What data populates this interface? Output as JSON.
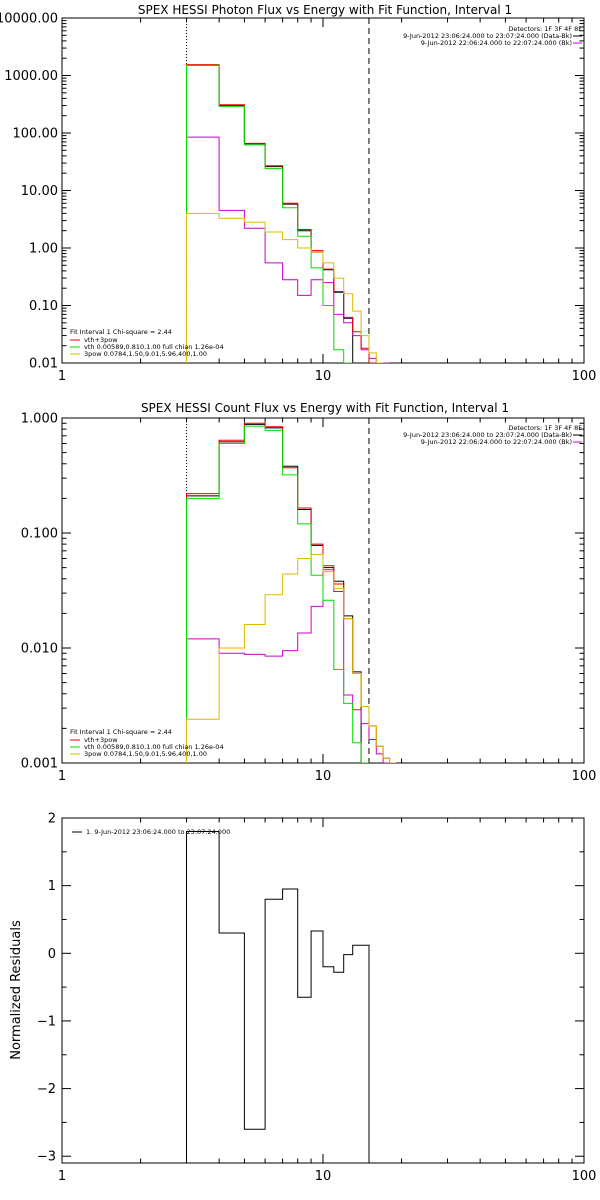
{
  "chart_data": [
    {
      "type": "line",
      "title": "SPEX HESSI Photon Flux vs Energy with Fit Function, Interval 1",
      "xlabel": "",
      "ylabel": "",
      "xscale": "log",
      "yscale": "log",
      "xlim": [
        1,
        100
      ],
      "ylim": [
        0.01,
        10000
      ],
      "xtick_labels": [
        "1",
        "10",
        "100"
      ],
      "ytick_labels": [
        "0.01",
        "0.10",
        "1.00",
        "10.00",
        "100.00",
        "1000.00",
        "10000.00"
      ],
      "vlines": [
        {
          "x": 3,
          "style": "dotted"
        },
        {
          "x": 15,
          "style": "dashed"
        }
      ],
      "info_lines": [
        "Detectors: 1F 3F 4F 8F",
        "9-Jun-2012 23:06:24.000 to 23:07:24.000 (Data-Bk)",
        "9-Jun-2012 22:06:24.000 to 22:07:24.000 (Bk)"
      ],
      "fit_legend": [
        "Fit Interval 1    Chi-square = 2.44",
        "vth+3pow",
        "vth 0.00589,0.810,1.00   full chian 1.26e-04",
        "3pow 0.0784,1.50,9.01,5.96,400,1.00"
      ],
      "edges": [
        3,
        4,
        5,
        6,
        7,
        8,
        9,
        10,
        11,
        12,
        13,
        14,
        15,
        16,
        17,
        18
      ],
      "series": [
        {
          "name": "Data-Bk",
          "color": "#000000",
          "values": [
            1500,
            300,
            65,
            26,
            5.8,
            2.0,
            0.85,
            0.42,
            0.17,
            0.06,
            null,
            null,
            null,
            null,
            null
          ]
        },
        {
          "name": "Bk",
          "color": "#cc00cc",
          "values": [
            85,
            4.5,
            2.2,
            0.55,
            0.28,
            0.15,
            0.28,
            0.25,
            0.07,
            0.05,
            0.03,
            0.017,
            0.012,
            0.01,
            0.01
          ]
        },
        {
          "name": "vth+3pow",
          "color": "#ee0000",
          "values": [
            1550,
            310,
            66,
            27,
            6.0,
            2.1,
            0.9,
            0.43,
            0.175,
            0.062,
            0.035,
            0.018,
            0.01,
            null,
            null
          ]
        },
        {
          "name": "vth",
          "color": "#00dd00",
          "values": [
            1500,
            290,
            62,
            24,
            5.0,
            1.6,
            0.45,
            0.1,
            0.017,
            0.01,
            null,
            null,
            null,
            null,
            null
          ]
        },
        {
          "name": "3pow",
          "color": "#ddbb00",
          "values": [
            4,
            3.3,
            2.8,
            1.9,
            1.4,
            1.0,
            0.85,
            0.55,
            0.3,
            0.16,
            0.08,
            0.03,
            0.015,
            0.01,
            null
          ]
        }
      ]
    },
    {
      "type": "line",
      "title": "SPEX HESSI Count Flux vs Energy with Fit Function, Interval 1",
      "xlabel": "",
      "ylabel": "",
      "xscale": "log",
      "yscale": "log",
      "xlim": [
        1,
        100
      ],
      "ylim": [
        0.001,
        1
      ],
      "xtick_labels": [
        "1",
        "10",
        "100"
      ],
      "ytick_labels": [
        "0.001",
        "0.010",
        "0.100",
        "1.000"
      ],
      "vlines": [
        {
          "x": 3,
          "style": "dotted"
        },
        {
          "x": 15,
          "style": "dashed"
        }
      ],
      "info_lines": [
        "Detectors: 1F 3F 4F 8F",
        "9-Jun-2012 23:06:24.000 to 23:07:24.000 (Data-Bk)",
        "9-Jun-2012 22:06:24.000 to 22:07:24.000 (Bk)"
      ],
      "fit_legend": [
        "Fit Interval 1    Chi-square = 2.44",
        "vth+3pow",
        "vth 0.00589,0.810,1.00   full chian 1.26e-04",
        "3pow 0.0784,1.50,9.01,5.96,400,1.00"
      ],
      "edges": [
        3,
        4,
        5,
        6,
        7,
        8,
        9,
        10,
        11,
        12,
        13,
        14,
        15,
        16,
        17,
        18,
        19,
        20
      ],
      "series": [
        {
          "name": "Data-Bk",
          "color": "#000000",
          "values": [
            0.21,
            0.62,
            0.88,
            0.82,
            0.38,
            0.16,
            0.078,
            0.05,
            0.038,
            0.019,
            0.0062,
            null,
            null,
            null,
            null,
            null,
            null
          ]
        },
        {
          "name": "Bk",
          "color": "#cc00cc",
          "values": [
            0.012,
            0.009,
            0.0088,
            0.0085,
            0.0095,
            0.0135,
            0.023,
            0.048,
            0.031,
            0.0039,
            0.0029,
            0.0022,
            0.0016,
            0.0012,
            0.001,
            null,
            null
          ]
        },
        {
          "name": "vth+3pow",
          "color": "#ee0000",
          "values": [
            0.22,
            0.64,
            0.9,
            0.84,
            0.37,
            0.165,
            0.08,
            0.052,
            0.036,
            0.018,
            0.006,
            0.0031,
            0.0021,
            0.0014,
            0.0011,
            0.001,
            null
          ]
        },
        {
          "name": "vth",
          "color": "#00dd00",
          "values": [
            0.2,
            0.6,
            0.85,
            0.78,
            0.32,
            0.12,
            0.043,
            0.026,
            0.0065,
            0.0033,
            0.0015,
            0.001,
            null,
            null,
            null,
            null,
            null
          ]
        },
        {
          "name": "3pow",
          "color": "#ddbb00",
          "values": [
            0.0024,
            0.01,
            0.016,
            0.029,
            0.044,
            0.06,
            0.065,
            0.046,
            0.033,
            0.018,
            0.006,
            0.0031,
            0.0021,
            0.0014,
            0.0011,
            0.001,
            null
          ]
        }
      ]
    },
    {
      "type": "line",
      "title": "",
      "xlabel": "",
      "ylabel": "Normalized Residuals",
      "xscale": "log",
      "yscale": "linear",
      "xlim": [
        1,
        100
      ],
      "ylim": [
        -3.1,
        2
      ],
      "xtick_labels": [
        "1",
        "10",
        "100"
      ],
      "ytick_values": [
        -3,
        -2,
        -1,
        0,
        1,
        2
      ],
      "ytick_labels": [
        "−3",
        "−2",
        "−1",
        "0",
        "1",
        "2"
      ],
      "legend": "1.  9-Jun-2012 23:06:24.000 to 23:07:24.000",
      "edges": [
        3,
        4,
        5,
        6,
        7,
        8,
        9,
        10,
        11,
        12,
        13,
        14,
        15
      ],
      "series": [
        {
          "name": "",
          "color": "#000000",
          "values": [
            1.8,
            0.3,
            -2.6,
            0.8,
            0.95,
            -0.65,
            0.33,
            -0.2,
            -0.28,
            -0.02,
            0.12,
            0.12
          ]
        }
      ]
    }
  ]
}
